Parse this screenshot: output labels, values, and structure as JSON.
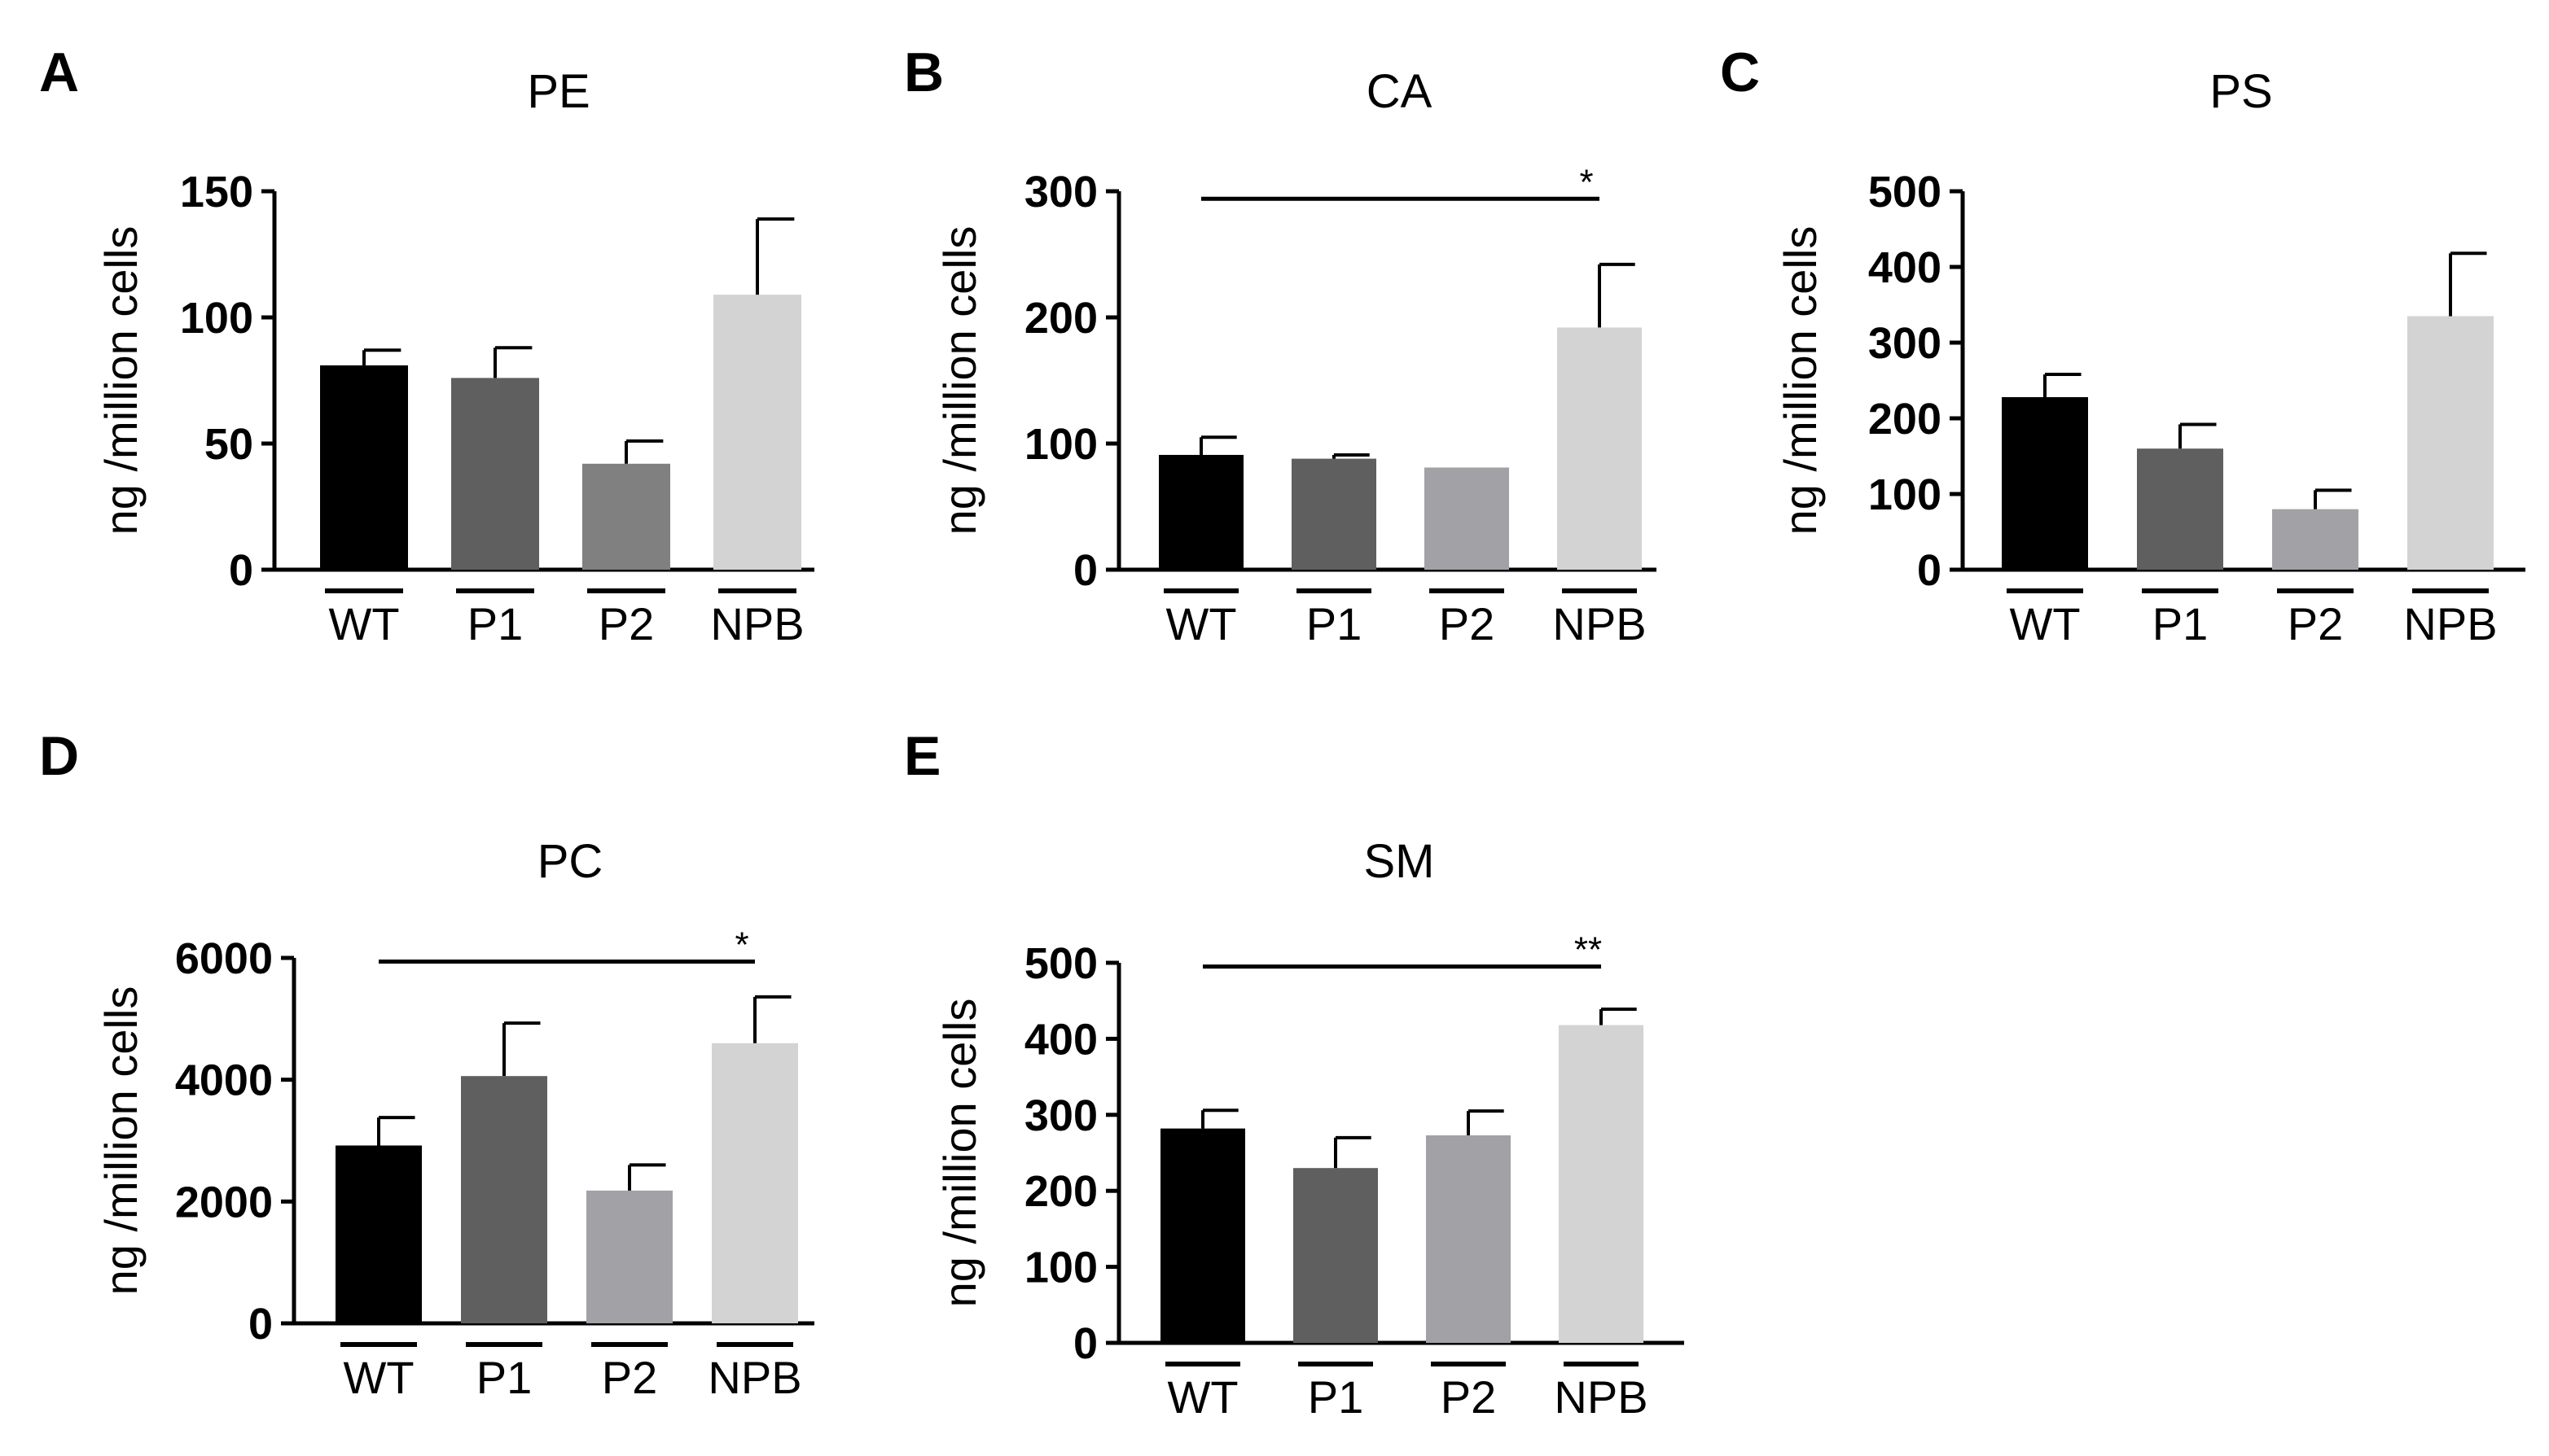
{
  "figure": {
    "panels": [
      "A",
      "B",
      "C",
      "D",
      "E"
    ]
  },
  "chart_data": [
    {
      "panel": "A",
      "type": "bar",
      "title": "PE",
      "ylabel": "ng /million cells",
      "xlabel": "",
      "categories": [
        "WT",
        "P1",
        "P2",
        "NPB"
      ],
      "values": [
        81,
        76,
        42,
        109
      ],
      "errors": [
        6,
        12,
        9,
        30
      ],
      "colors": [
        "#000000",
        "#5f5f5f",
        "#808080",
        "#d3d3d3"
      ],
      "ylim": [
        0,
        150
      ],
      "yticks": [
        "0",
        "50",
        "100",
        "150"
      ],
      "significance": []
    },
    {
      "panel": "B",
      "type": "bar",
      "title": "CA",
      "ylabel": "ng /million cells",
      "xlabel": "",
      "categories": [
        "WT",
        "P1",
        "P2",
        "NPB"
      ],
      "values": [
        91,
        88,
        81,
        192
      ],
      "errors": [
        14,
        3,
        0,
        50
      ],
      "colors": [
        "#000000",
        "#5f5f5f",
        "#a2a2a6",
        "#d3d3d3"
      ],
      "ylim": [
        0,
        300
      ],
      "yticks": [
        "0",
        "100",
        "200",
        "300"
      ],
      "significance": [
        {
          "from": "WT",
          "to": "NPB",
          "label": "*",
          "y": 294
        }
      ]
    },
    {
      "panel": "C",
      "type": "bar",
      "title": "PS",
      "ylabel": "ng /million cells",
      "xlabel": "",
      "categories": [
        "WT",
        "P1",
        "P2",
        "NPB"
      ],
      "values": [
        228,
        160,
        80,
        335
      ],
      "errors": [
        30,
        32,
        25,
        83
      ],
      "colors": [
        "#000000",
        "#5f5f5f",
        "#a2a2a6",
        "#d3d3d3"
      ],
      "ylim": [
        0,
        500
      ],
      "yticks": [
        "0",
        "100",
        "200",
        "300",
        "400",
        "500"
      ],
      "significance": []
    },
    {
      "panel": "D",
      "type": "bar",
      "title": "PC",
      "ylabel": "ng /million cells",
      "xlabel": "",
      "categories": [
        "WT",
        "P1",
        "P2",
        "NPB"
      ],
      "values": [
        2920,
        4060,
        2180,
        4600
      ],
      "errors": [
        460,
        870,
        420,
        760
      ],
      "colors": [
        "#000000",
        "#5f5f5f",
        "#a2a2a6",
        "#d3d3d3"
      ],
      "ylim": [
        0,
        6000
      ],
      "yticks": [
        "0",
        "2000",
        "4000",
        "6000"
      ],
      "significance": [
        {
          "from": "WT",
          "to": "NPB",
          "label": "*",
          "y": 5940
        }
      ]
    },
    {
      "panel": "E",
      "type": "bar",
      "title": "SM",
      "ylabel": "ng /million cells",
      "xlabel": "",
      "categories": [
        "WT",
        "P1",
        "P2",
        "NPB"
      ],
      "values": [
        282,
        230,
        273,
        418
      ],
      "errors": [
        24,
        40,
        32,
        21
      ],
      "colors": [
        "#000000",
        "#5f5f5f",
        "#a2a2a6",
        "#d3d3d3"
      ],
      "ylim": [
        0,
        500
      ],
      "yticks": [
        "0",
        "100",
        "200",
        "300",
        "400",
        "500"
      ],
      "significance": [
        {
          "from": "WT",
          "to": "NPB",
          "label": "**",
          "y": 495
        }
      ]
    }
  ]
}
